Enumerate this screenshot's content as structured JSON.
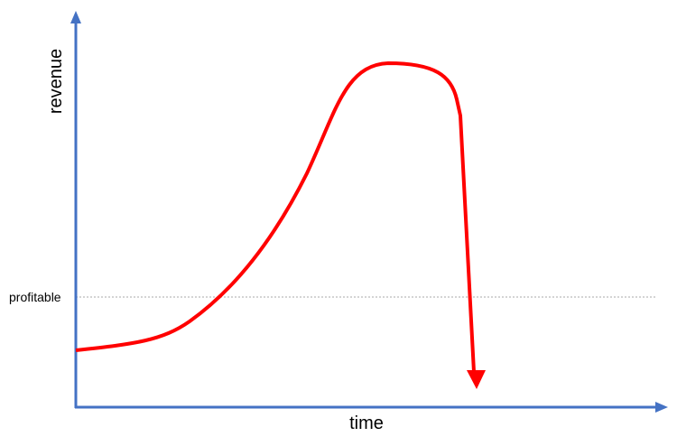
{
  "axes": {
    "y_label": "revenue",
    "x_label": "time"
  },
  "threshold": {
    "label": "profitable"
  }
}
